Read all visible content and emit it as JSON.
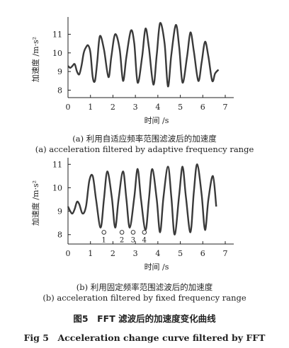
{
  "figure": {
    "title_cn": "图5　FFT 滤波后的加速度变化曲线",
    "title_en": "Fig 5　Acceleration change curve filtered by FFT"
  },
  "chart_data": [
    {
      "type": "line",
      "id": "a",
      "ylabel": "加速度 /m·s²",
      "xlabel": "时间 /s",
      "xlim": [
        0,
        7
      ],
      "ylim": [
        7.6,
        11.7
      ],
      "xticks": [
        0,
        1,
        2,
        3,
        4,
        5,
        6,
        7
      ],
      "yticks": [
        8,
        9,
        10,
        11
      ],
      "caption_cn": "(a) 利用自适应频率范围滤波后的加速度",
      "caption_en": "(a) acceleration filtered by adaptive frequency range",
      "series": [
        {
          "x": [
            0.0,
            0.1,
            0.2,
            0.3,
            0.4,
            0.5,
            0.6,
            0.7,
            0.8,
            0.9,
            1.0,
            1.1,
            1.2,
            1.3,
            1.42,
            1.6,
            1.8,
            1.93,
            2.1,
            2.3,
            2.45,
            2.6,
            2.8,
            2.95,
            3.1,
            3.3,
            3.45,
            3.6,
            3.8,
            3.95,
            4.1,
            4.3,
            4.45,
            4.6,
            4.8,
            4.95,
            5.1,
            5.3,
            5.45,
            5.6,
            5.8,
            5.95,
            6.1,
            6.25,
            6.42,
            6.55,
            6.7
          ],
          "y": [
            9.3,
            9.2,
            9.3,
            9.4,
            9.0,
            8.85,
            9.3,
            10.0,
            10.3,
            10.4,
            10.0,
            8.7,
            8.5,
            9.5,
            10.9,
            10.2,
            8.7,
            9.8,
            11.0,
            10.2,
            8.5,
            9.8,
            11.2,
            10.5,
            8.4,
            9.8,
            11.3,
            10.3,
            8.3,
            9.9,
            11.6,
            10.5,
            8.2,
            9.9,
            11.5,
            10.3,
            8.4,
            9.8,
            11.1,
            10.1,
            8.5,
            9.5,
            10.6,
            9.8,
            8.5,
            8.9,
            9.1
          ]
        }
      ]
    },
    {
      "type": "line",
      "id": "b",
      "ylabel": "加速度 /m·s²",
      "xlabel": "时间 /s",
      "xlim": [
        0,
        7
      ],
      "ylim": [
        7.6,
        11.1
      ],
      "xticks": [
        0,
        1,
        2,
        3,
        4,
        5,
        6,
        7
      ],
      "yticks": [
        8,
        9,
        10,
        11
      ],
      "caption_cn": "(b) 利用固定频率范围滤波后的加速度",
      "caption_en": "(b) acceleration filtered by fixed frequency range",
      "annotations": [
        {
          "label": "1",
          "x": 1.6,
          "y": 8.1
        },
        {
          "label": "2",
          "x": 2.4,
          "y": 8.1
        },
        {
          "label": "3",
          "x": 2.9,
          "y": 8.1
        },
        {
          "label": "4",
          "x": 3.4,
          "y": 8.1
        }
      ],
      "series": [
        {
          "x": [
            0.0,
            0.1,
            0.2,
            0.3,
            0.4,
            0.5,
            0.65,
            0.8,
            0.95,
            1.1,
            1.25,
            1.45,
            1.6,
            1.75,
            1.95,
            2.1,
            2.25,
            2.45,
            2.6,
            2.75,
            2.95,
            3.1,
            3.25,
            3.45,
            3.6,
            3.75,
            3.95,
            4.1,
            4.25,
            4.45,
            4.6,
            4.75,
            4.95,
            5.1,
            5.25,
            5.45,
            5.6,
            5.75,
            5.95,
            6.1,
            6.25,
            6.45,
            6.6
          ],
          "y": [
            9.2,
            9.0,
            8.9,
            9.1,
            9.4,
            9.3,
            8.9,
            9.2,
            10.3,
            10.5,
            9.5,
            8.3,
            9.5,
            10.7,
            9.6,
            8.3,
            9.5,
            10.7,
            9.5,
            8.3,
            9.6,
            10.8,
            9.5,
            8.2,
            9.5,
            10.8,
            9.5,
            8.1,
            9.6,
            10.9,
            9.6,
            8.0,
            9.7,
            10.9,
            9.6,
            8.1,
            9.8,
            11.0,
            9.7,
            8.2,
            9.5,
            10.5,
            9.2
          ]
        }
      ]
    }
  ]
}
